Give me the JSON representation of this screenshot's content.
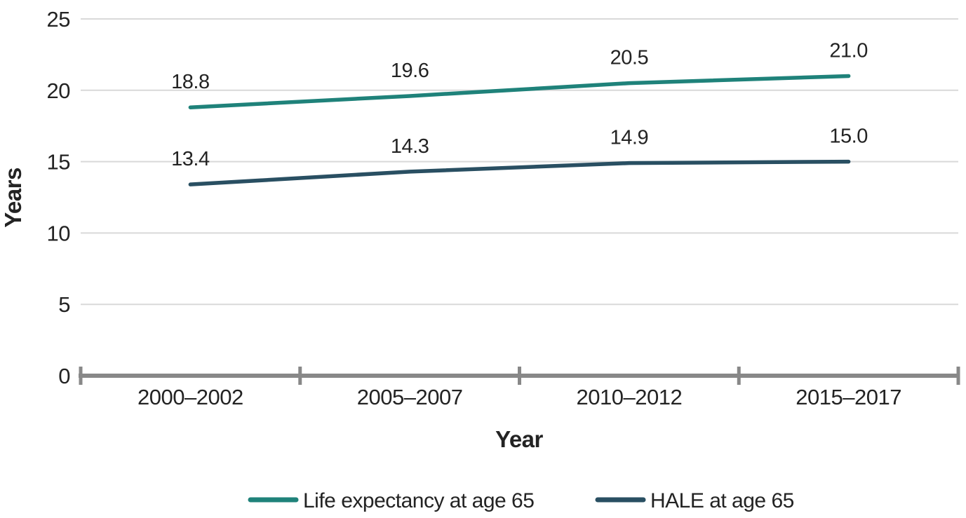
{
  "chart_data": {
    "type": "line",
    "title": "",
    "categories": [
      "2000–2002",
      "2005–2007",
      "2010–2012",
      "2015–2017"
    ],
    "series": [
      {
        "name": "Life expectancy at age 65",
        "values": [
          18.8,
          19.6,
          20.5,
          21.0
        ],
        "labels": [
          "18.8",
          "19.6",
          "20.5",
          "21.0"
        ],
        "color": "#1f827a"
      },
      {
        "name": "HALE at age 65",
        "values": [
          13.4,
          14.3,
          14.9,
          15.0
        ],
        "labels": [
          "13.4",
          "14.3",
          "14.9",
          "15.0"
        ],
        "color": "#294f62"
      }
    ],
    "xlabel": "Year",
    "ylabel": "Years",
    "ylim": [
      0,
      25
    ],
    "yticks": [
      0,
      5,
      10,
      15,
      20,
      25
    ],
    "ytick_labels": [
      "0",
      "5",
      "10",
      "15",
      "20",
      "25"
    ],
    "grid": "horizontal",
    "legend_position": "bottom",
    "colors": {
      "axis": "#888888",
      "gridline": "#d9d9d9",
      "text": "#232323",
      "background": "#ffffff"
    }
  }
}
